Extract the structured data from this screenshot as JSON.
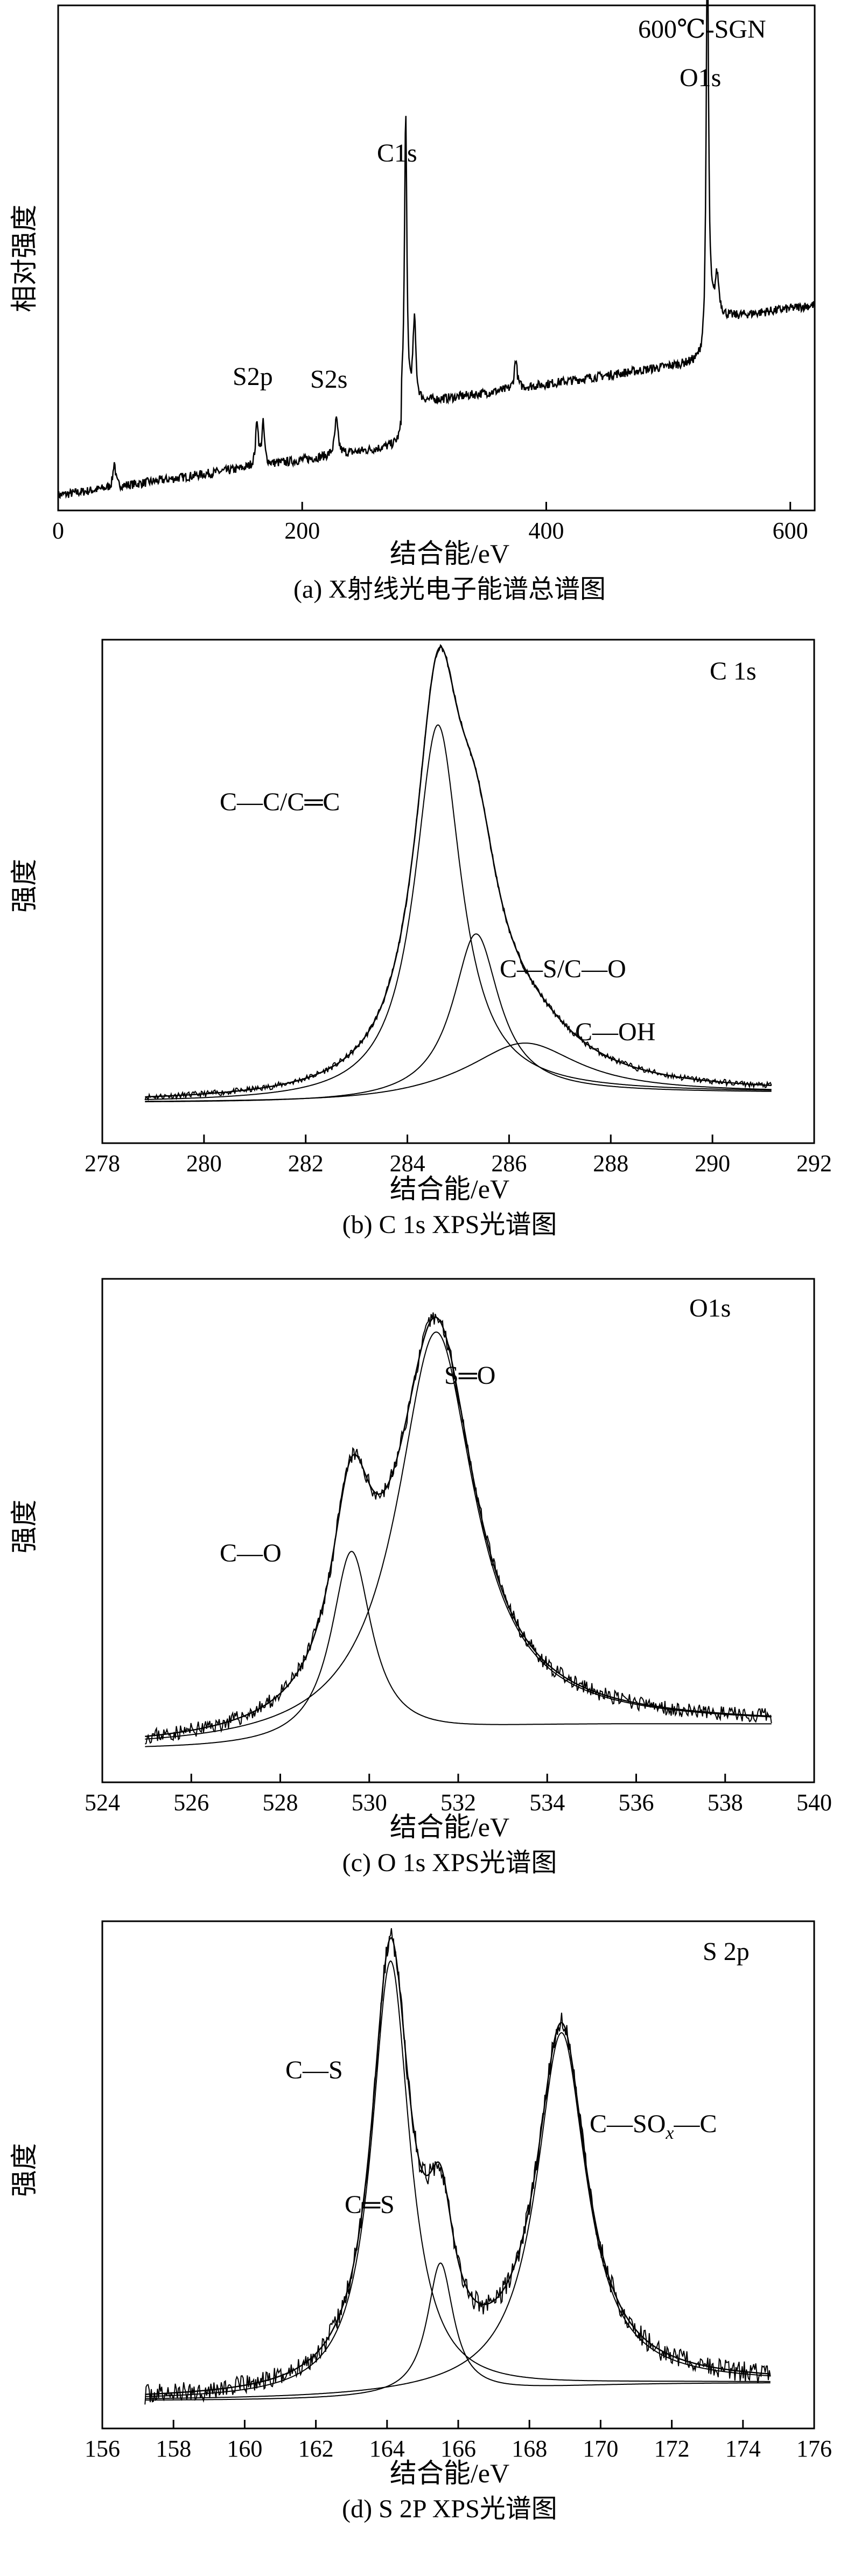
{
  "charts": [
    {
      "type": "line",
      "title": "600℃-SGN",
      "caption": "(a) X射线光电子能谱总谱图",
      "xlabel": "结合能/eV",
      "ylabel": "相对强度",
      "xlim": [
        0,
        620
      ],
      "ylim": [
        0,
        1
      ],
      "xticks": [
        0,
        200,
        400,
        600
      ],
      "xtick_labels": [
        "0",
        "200",
        "400",
        "600"
      ],
      "peak_labels": [
        {
          "text": "S2p",
          "x": 164,
          "y": 0.27
        },
        {
          "text": "S2s",
          "x": 228,
          "y": 0.26
        },
        {
          "text": "C1s",
          "x": 284.8,
          "y": 0.73
        },
        {
          "text": "O1s",
          "x": 532,
          "y": 0.93
        }
      ]
    },
    {
      "type": "line",
      "title": "C 1s",
      "caption": "(b) C 1s XPS光谱图",
      "xlabel": "结合能/eV",
      "ylabel": "强度",
      "xlim": [
        278,
        292
      ],
      "ylim": [
        0,
        1
      ],
      "xticks": [
        278,
        280,
        282,
        284,
        286,
        288,
        290,
        292
      ],
      "xtick_labels": [
        "278",
        "280",
        "282",
        "284",
        "286",
        "288",
        "290",
        "292"
      ],
      "components": [
        {
          "name": "C—C/C═C",
          "center": 284.6,
          "height": 0.74,
          "width": 0.55
        },
        {
          "name": "C—S/C—O",
          "center": 285.35,
          "height": 0.32,
          "width": 0.55
        },
        {
          "name": "C—OH",
          "center": 286.3,
          "height": 0.1,
          "width": 1.3
        }
      ]
    },
    {
      "type": "line",
      "title": "O1s",
      "caption": "(c) O 1s XPS光谱图",
      "xlabel": "结合能/eV",
      "ylabel": "强度",
      "xlim": [
        524,
        540
      ],
      "ylim": [
        0,
        1
      ],
      "xticks": [
        524,
        526,
        528,
        530,
        532,
        534,
        536,
        538,
        540
      ],
      "xtick_labels": [
        "524",
        "526",
        "528",
        "530",
        "532",
        "534",
        "536",
        "538",
        "540"
      ],
      "components": [
        {
          "name": "C—O",
          "center": 529.6,
          "height": 0.38,
          "width": 0.55
        },
        {
          "name": "S═O",
          "center": 531.5,
          "height": 0.8,
          "width": 1.05
        }
      ]
    },
    {
      "type": "line",
      "title": "S 2p",
      "caption": "(d) S 2P XPS光谱图",
      "xlabel": "结合能/eV",
      "ylabel": "强度",
      "xlim": [
        156,
        176
      ],
      "ylim": [
        0,
        1
      ],
      "xticks": [
        156,
        158,
        160,
        162,
        164,
        166,
        168,
        170,
        172,
        174,
        176
      ],
      "xtick_labels": [
        "156",
        "158",
        "160",
        "162",
        "164",
        "166",
        "168",
        "170",
        "172",
        "174",
        "176"
      ],
      "components": [
        {
          "name": "C—S",
          "center": 164.1,
          "height": 0.86,
          "width": 0.65
        },
        {
          "name": "C═S",
          "center": 165.5,
          "height": 0.26,
          "width": 0.45
        },
        {
          "name": "C—SOx—C",
          "center": 168.9,
          "height": 0.7,
          "width": 0.85
        }
      ]
    }
  ],
  "annotations": {
    "a_s2p": "S2p",
    "a_s2s": "S2s",
    "a_c1s": "C1s",
    "a_o1s": "O1s",
    "b_cc": "C—C/C═C",
    "b_cs": "C—S/C—O",
    "b_coh": "C—OH",
    "c_co": "C—O",
    "c_so": "S═O",
    "d_cs": "C—S",
    "d_cs2": "C═S",
    "d_csox_a": "C—SO",
    "d_csox_sub": "x",
    "d_csox_b": "—C"
  }
}
